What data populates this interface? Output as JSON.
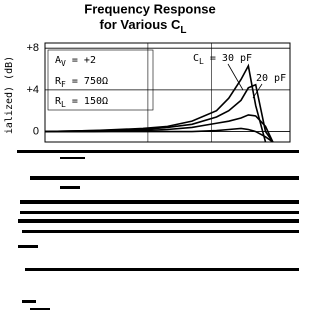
{
  "chart_data": {
    "type": "line",
    "title": {
      "line1": "Frequency Response",
      "line2": "for Various C",
      "sub": "L"
    },
    "y_label": "ialized) (dB)",
    "x": [
      0,
      2,
      4,
      5,
      6,
      7,
      7.5,
      8,
      8.3,
      8.6,
      9,
      9.3
    ],
    "xlim": [
      0,
      10
    ],
    "ylim": [
      -1,
      8.5
    ],
    "yticks": [
      {
        "value": 8,
        "label": "+8"
      },
      {
        "value": 4,
        "label": "+4"
      },
      0
    ],
    "grid": true,
    "series": [
      {
        "color": "#000000",
        "values": [
          0,
          0.1,
          0.3,
          0.5,
          1,
          2,
          3.2,
          5,
          6.3,
          2.5,
          -1,
          null
        ]
      },
      {
        "color": "#000000",
        "values": [
          0,
          0.1,
          0.2,
          0.4,
          0.7,
          1.4,
          2,
          3,
          4.2,
          4.5,
          0,
          -1
        ]
      },
      {
        "color": "#000000",
        "values": [
          0,
          0,
          0.1,
          0.2,
          0.4,
          0.8,
          1,
          1.3,
          1.6,
          1.5,
          0.5,
          -1
        ]
      },
      {
        "color": "#000000",
        "values": [
          0,
          0,
          0,
          0,
          0,
          0.1,
          0.2,
          0.3,
          0.2,
          0,
          -0.5,
          -1
        ]
      }
    ],
    "annotations": [
      {
        "main": "A",
        "sub": "V",
        "rest": " = +2"
      },
      {
        "main": "R",
        "sub": "F",
        "rest": " = 750Ω"
      },
      {
        "main": "R",
        "sub": "L",
        "rest": " = 150Ω"
      },
      {
        "main": "C",
        "sub": "L",
        "rest": " = 30 pF"
      },
      {
        "main": "20 pF"
      }
    ]
  }
}
